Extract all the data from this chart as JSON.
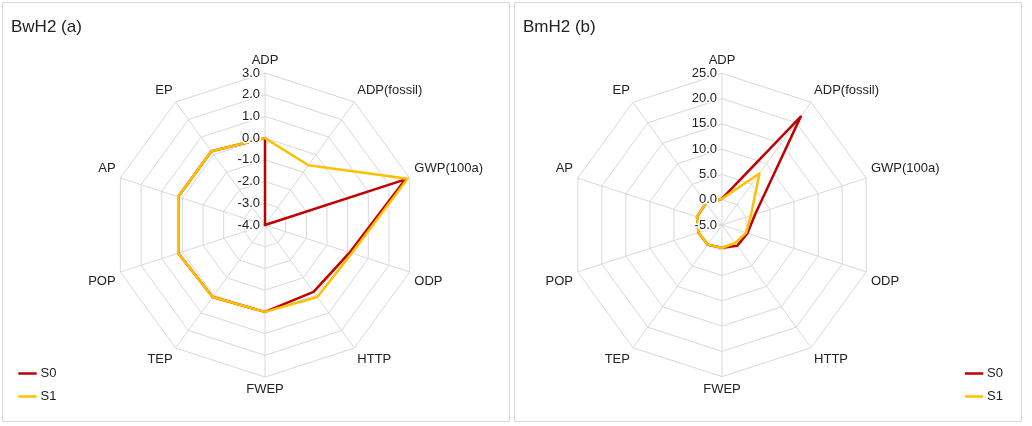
{
  "chart_data": [
    {
      "type": "radar",
      "title": "BwH2 (a)",
      "categories": [
        "ADP",
        "ADP(fossil)",
        "GWP(100a)",
        "ODP",
        "HTTP",
        "FWEP",
        "TEP",
        "POP",
        "AP",
        "EP"
      ],
      "series": [
        {
          "name": "S0",
          "color": "#c00000",
          "values": [
            0.0,
            -4.0,
            2.8,
            0.1,
            -0.2,
            0.0,
            0.1,
            0.2,
            0.2,
            0.2
          ]
        },
        {
          "name": "S1",
          "color": "#ffc000",
          "values": [
            0.0,
            -0.6,
            2.9,
            0.2,
            0.1,
            0.0,
            0.1,
            0.2,
            0.2,
            0.2
          ]
        }
      ],
      "ylim": [
        -4,
        3
      ],
      "yticks": [
        {
          "value": -4,
          "label": "-4.0"
        },
        {
          "value": -3,
          "label": "-3.0"
        },
        {
          "value": -2,
          "label": "-2.0"
        },
        {
          "value": -1,
          "label": "-1.0"
        },
        {
          "value": 0,
          "label": "0.0"
        },
        {
          "value": 1,
          "label": "1.0"
        },
        {
          "value": 2,
          "label": "2.0"
        },
        {
          "value": 3,
          "label": "3.0"
        }
      ],
      "grid": true,
      "legend": "bottom left",
      "marker": "none"
    },
    {
      "type": "radar",
      "title": "BmH2 (b)",
      "categories": [
        "ADP",
        "ADP(fossil)",
        "GWP(100a)",
        "ODP",
        "HTTP",
        "FWEP",
        "TEP",
        "POP",
        "AP",
        "EP"
      ],
      "series": [
        {
          "name": "S0",
          "color": "#c00000",
          "values": [
            0.2,
            21.5,
            1.9,
            0.3,
            0.1,
            -0.5,
            -0.2,
            -0.1,
            0.2,
            0.4
          ]
        },
        {
          "name": "S1",
          "color": "#ffc000",
          "values": [
            0.2,
            7.6,
            1.0,
            0.0,
            -0.6,
            -0.5,
            -0.2,
            -0.1,
            0.2,
            0.4
          ]
        }
      ],
      "ylim": [
        -5,
        25
      ],
      "yticks": [
        {
          "value": -5,
          "label": "-5.0"
        },
        {
          "value": 0,
          "label": "0.0"
        },
        {
          "value": 5,
          "label": "5.0"
        },
        {
          "value": 10,
          "label": "10.0"
        },
        {
          "value": 15,
          "label": "15.0"
        },
        {
          "value": 20,
          "label": "20.0"
        },
        {
          "value": 25,
          "label": "25.0"
        }
      ],
      "grid": true,
      "legend": "bottom right",
      "marker": "none"
    }
  ]
}
